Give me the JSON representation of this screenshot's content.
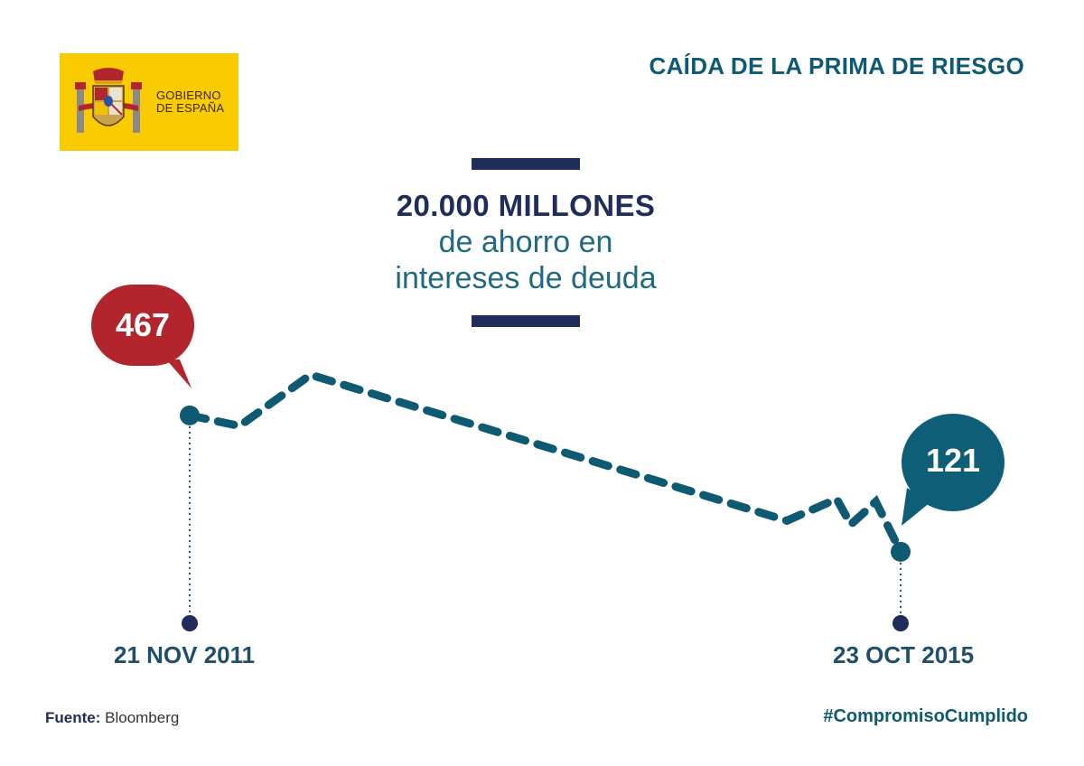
{
  "logo": {
    "line1": "GOBIERNO",
    "line2": "DE ESPAÑA"
  },
  "title": "CAÍDA DE LA PRIMA DE RIESGO",
  "headline": {
    "bold": "20.000 MILLONES",
    "line2": "de ahorro en",
    "line3": "intereses de deuda"
  },
  "footer": {
    "source_label": "Fuente:",
    "source_value": "Bloomberg",
    "hashtag": "#CompromisoCumplido"
  },
  "colors": {
    "start": "#b3252c",
    "end": "#0e5e77",
    "line": "#0f5a73",
    "navy": "#1f2d5a"
  },
  "chart_data": {
    "type": "line",
    "title": "CAÍDA DE LA PRIMA DE RIESGO",
    "xlabel": "",
    "ylabel": "",
    "ylim": [
      100,
      650
    ],
    "points": [
      {
        "x": 0,
        "y": 467
      },
      {
        "x": 0.07,
        "y": 440
      },
      {
        "x": 0.17,
        "y": 570
      },
      {
        "x": 0.84,
        "y": 200
      },
      {
        "x": 0.91,
        "y": 255
      },
      {
        "x": 0.93,
        "y": 190
      },
      {
        "x": 0.965,
        "y": 248
      },
      {
        "x": 1,
        "y": 121
      }
    ],
    "start": {
      "label": "21 NOV 2011",
      "value": 467
    },
    "end": {
      "label": "23 OCT 2015",
      "value": 121
    }
  }
}
